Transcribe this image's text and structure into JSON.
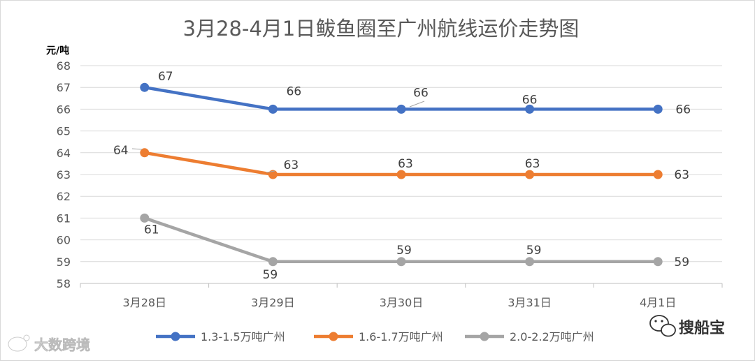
{
  "chart_data": {
    "type": "line",
    "title": "3月28-4月1日鲅鱼圈至广州航线运价走势图",
    "ylabel": "元/吨",
    "xlabel": "",
    "categories": [
      "3月28日",
      "3月29日",
      "3月30日",
      "3月31日",
      "4月1日"
    ],
    "ylim": [
      58,
      68
    ],
    "yticks": [
      "58",
      "59",
      "60",
      "61",
      "62",
      "63",
      "64",
      "65",
      "66",
      "67",
      "68"
    ],
    "grid": true,
    "legend_position": "bottom",
    "series": [
      {
        "name": "1.3-1.5万吨广州",
        "color": "#4472c4",
        "values": [
          67,
          66,
          66,
          66,
          66
        ],
        "labels": [
          "67",
          "66",
          "66",
          "66",
          "66"
        ]
      },
      {
        "name": "1.6-1.7万吨广州",
        "color": "#ed7d31",
        "values": [
          64,
          63,
          63,
          63,
          63
        ],
        "labels": [
          "64",
          "63",
          "63",
          "63",
          "63"
        ]
      },
      {
        "name": "2.0-2.2万吨广州",
        "color": "#a5a5a5",
        "values": [
          61,
          59,
          59,
          59,
          59
        ],
        "labels": [
          "61",
          "59",
          "59",
          "59",
          "59"
        ]
      }
    ]
  },
  "watermarks": {
    "left_text": "大数跨境",
    "right_text": "搜船宝",
    "left_icon": "weibo-icon",
    "right_icon": "wechat-icon"
  }
}
